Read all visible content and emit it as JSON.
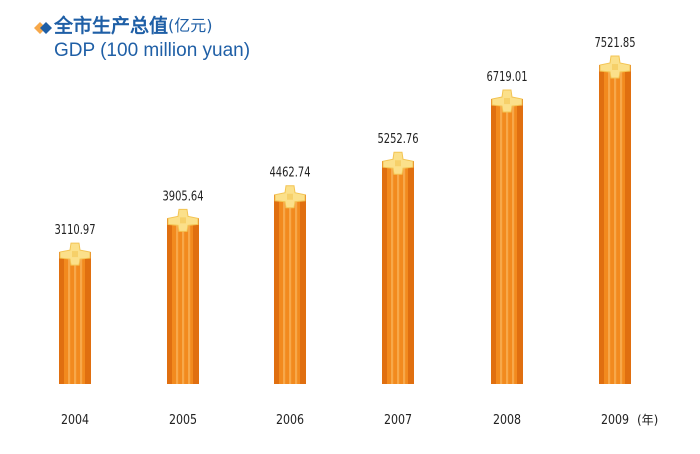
{
  "title": {
    "main": "全市生产总值",
    "unit": "(亿元)",
    "english": "GDP (100 million yuan)"
  },
  "colors": {
    "title": "#1f5fa6",
    "bar_main": "#f28a1e",
    "bar_dark": "#e06f10",
    "bar_light": "#f7a84a",
    "cap": "#fbe08a",
    "cap_dark": "#f3c453",
    "text": "#222222"
  },
  "icons": {
    "bullet": "diamond-bullet-icon"
  },
  "chart_data": {
    "type": "bar",
    "categories": [
      "2004",
      "2005",
      "2006",
      "2007",
      "2008",
      "2009"
    ],
    "values": [
      3110.97,
      3905.64,
      4462.74,
      5252.76,
      6719.01,
      7521.85
    ],
    "value_labels": [
      "3110.97",
      "3905.64",
      "4462.74",
      "5252.76",
      "6719.01",
      "7521.85"
    ],
    "xlabel_suffix": "(年)",
    "grid": false,
    "legend": "none"
  }
}
